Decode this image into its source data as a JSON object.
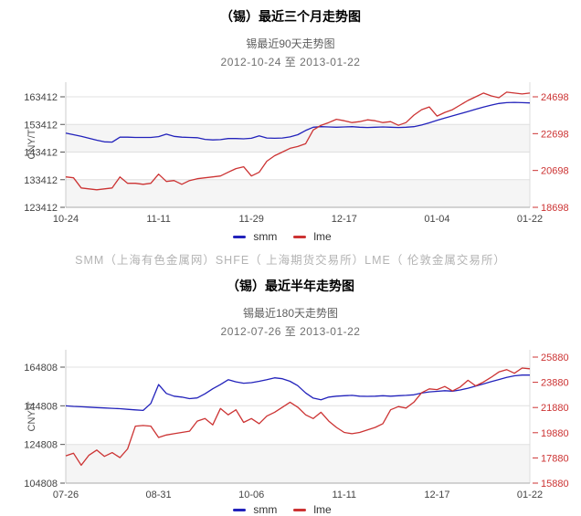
{
  "info_note": "SMM（上海有色金属网）SHFE（ 上海期货交易所）LME（ 伦敦金属交易所）",
  "legend": {
    "smm": "smm",
    "lme": "lme"
  },
  "colors": {
    "smm_line": "#2222bb",
    "lme_line": "#cc3333",
    "right_axis_text": "#cc3333",
    "left_axis_text": "#444444",
    "grid_line": "#e0e0e0",
    "band_alt": "#f5f5f5"
  },
  "chart_data": [
    {
      "type": "line",
      "title": "（锡）最近三个月走势图",
      "subtitle": "锡最近90天走势图",
      "date_range": "2012-10-24 至 2013-01-22",
      "ylabel_left": "CNY/T",
      "grid": true,
      "legend_position": "bottom",
      "x_tick_labels": [
        "10-24",
        "11-11",
        "11-29",
        "12-17",
        "01-04",
        "01-22"
      ],
      "left_axis": {
        "ticks": [
          123412,
          133412,
          143412,
          153412,
          163412
        ],
        "range": [
          123412,
          163412
        ]
      },
      "right_axis": {
        "ticks": [
          18698,
          20698,
          22698,
          24698
        ],
        "range": [
          18698,
          24698
        ]
      },
      "series": [
        {
          "name": "smm",
          "axis": "left",
          "color": "#2222bb",
          "values": [
            150300,
            149700,
            149100,
            148400,
            147700,
            147100,
            147000,
            148800,
            148800,
            148700,
            148700,
            148700,
            149000,
            149900,
            149100,
            148800,
            148700,
            148600,
            148000,
            147800,
            147900,
            148300,
            148300,
            148200,
            148400,
            149300,
            148500,
            148400,
            148500,
            148900,
            149700,
            151200,
            152400,
            152600,
            152500,
            152400,
            152500,
            152600,
            152400,
            152300,
            152400,
            152500,
            152400,
            152300,
            152400,
            152600,
            153200,
            154000,
            154900,
            155700,
            156500,
            157300,
            158100,
            158900,
            159700,
            160400,
            161000,
            161300,
            161400,
            161300,
            161200
          ]
        },
        {
          "name": "lme",
          "axis": "right",
          "color": "#cc3333",
          "values": [
            20350,
            20300,
            19750,
            19700,
            19650,
            19700,
            19750,
            20350,
            20000,
            20000,
            19950,
            20000,
            20500,
            20100,
            20150,
            19950,
            20150,
            20250,
            20300,
            20350,
            20400,
            20600,
            20800,
            20900,
            20400,
            20600,
            21200,
            21500,
            21700,
            21900,
            22000,
            22150,
            22900,
            23150,
            23300,
            23480,
            23400,
            23300,
            23350,
            23450,
            23400,
            23300,
            23350,
            23150,
            23300,
            23700,
            24000,
            24150,
            23650,
            23850,
            24000,
            24250,
            24500,
            24700,
            24900,
            24750,
            24650,
            24950,
            24900,
            24850,
            24900
          ]
        }
      ]
    },
    {
      "type": "line",
      "title": "（锡）最近半年走势图",
      "subtitle": "锡最近180天走势图",
      "date_range": "2012-07-26 至 2013-01-22",
      "ylabel_left": "CNY/T",
      "grid": true,
      "legend_position": "bottom",
      "x_tick_labels": [
        "07-26",
        "08-31",
        "10-06",
        "11-11",
        "12-17",
        "01-22"
      ],
      "left_axis": {
        "ticks": [
          104808,
          124808,
          144808,
          164808
        ],
        "range": [
          104808,
          164808
        ]
      },
      "right_axis": {
        "ticks": [
          15880,
          17880,
          19880,
          21880,
          23880,
          25880
        ],
        "range": [
          15880,
          25880
        ]
      },
      "series": [
        {
          "name": "smm",
          "axis": "left",
          "color": "#2222bb",
          "values": [
            144800,
            144500,
            144300,
            144100,
            143900,
            143700,
            143500,
            143300,
            143000,
            142700,
            142400,
            146000,
            155800,
            151200,
            149800,
            149300,
            148500,
            148900,
            151000,
            153600,
            155800,
            158300,
            157200,
            156500,
            156800,
            157500,
            158300,
            159300,
            158800,
            157500,
            155200,
            151500,
            148800,
            147900,
            149300,
            149800,
            150000,
            150200,
            149800,
            149700,
            149800,
            150000,
            149800,
            150000,
            150200,
            150500,
            151400,
            152000,
            152300,
            152600,
            152400,
            153000,
            153900,
            155000,
            156100,
            157300,
            158400,
            159500,
            160300,
            160700,
            160700
          ]
        },
        {
          "name": "lme",
          "axis": "right",
          "color": "#cc3333",
          "values": [
            18050,
            18250,
            17300,
            18100,
            18500,
            18000,
            18300,
            17900,
            18600,
            20400,
            20450,
            20400,
            19500,
            19700,
            19800,
            19900,
            20000,
            20800,
            21000,
            20500,
            21800,
            21300,
            21700,
            20700,
            21000,
            20600,
            21200,
            21500,
            21900,
            22300,
            21900,
            21300,
            21000,
            21500,
            20800,
            20300,
            19900,
            19800,
            19900,
            20100,
            20300,
            20600,
            21700,
            21950,
            21840,
            22300,
            23050,
            23360,
            23300,
            23550,
            23190,
            23500,
            24040,
            23600,
            23900,
            24280,
            24700,
            24890,
            24600,
            25010,
            24950
          ]
        }
      ]
    }
  ]
}
